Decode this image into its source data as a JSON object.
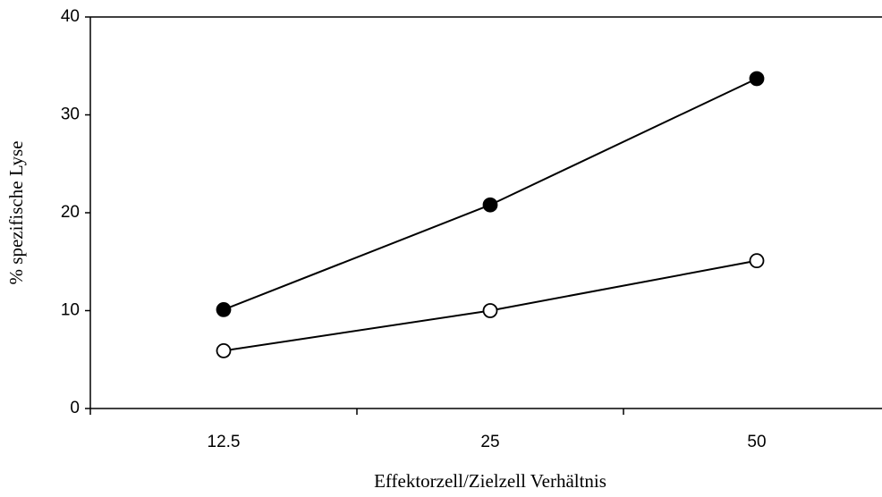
{
  "chart_data": {
    "type": "line",
    "x_label": "Effektorzell/Zielzell Verhältnis",
    "y_label": "% spezifische Lyse",
    "categories": [
      "12.5",
      "25",
      "50"
    ],
    "series": [
      {
        "color": "#000000",
        "values": [
          10.1,
          20.8,
          33.7
        ]
      },
      {
        "color": "#ffffff",
        "values": [
          5.9,
          10.0,
          15.1
        ]
      }
    ],
    "ylim": [
      0,
      40
    ],
    "yticks": [
      0,
      10,
      20,
      30,
      40
    ],
    "grid": false
  }
}
